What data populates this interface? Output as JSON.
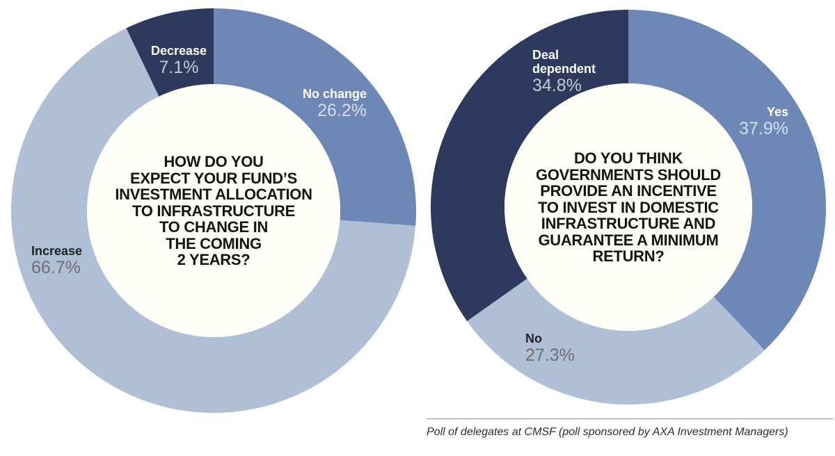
{
  "colors": {
    "dark_navy": "#2d3a5e",
    "medium_blue": "#6d88b7",
    "light_blue": "#aebfd6",
    "hole": "#fffef9",
    "background": "#ffffff"
  },
  "chart_data": [
    {
      "type": "pie",
      "subtype": "donut",
      "title": "HOW DO YOU\nEXPECT YOUR FUND’S\nINVESTMENT ALLOCATION\nTO INFRASTRUCTURE\nTO CHANGE IN\nTHE COMING\n2 YEARS?",
      "start_angle_deg": 0,
      "direction": "clockwise",
      "hole_color": "#fffef9",
      "segments": [
        {
          "label": "No change",
          "value": 26.2,
          "pct_text": "26.2%",
          "color": "#6d88b7",
          "text_theme": "light-on-dark"
        },
        {
          "label": "Increase",
          "value": 66.7,
          "pct_text": "66.7%",
          "color": "#aebfd6",
          "text_theme": "dark-on-light"
        },
        {
          "label": "Decrease",
          "value": 7.1,
          "pct_text": "7.1%",
          "color": "#2d3a5e",
          "text_theme": "light-on-dark"
        }
      ]
    },
    {
      "type": "pie",
      "subtype": "donut",
      "title": "DO YOU THINK\nGOVERNMENTS SHOULD\nPROVIDE AN INCENTIVE\nTO INVEST IN DOMESTIC\nINFRASTRUCTURE AND\nGUARANTEE A MINIMUM\nRETURN?",
      "start_angle_deg": 0,
      "direction": "clockwise",
      "hole_color": "#fffef9",
      "segments": [
        {
          "label": "Yes",
          "value": 37.9,
          "pct_text": "37.9%",
          "color": "#6d88b7",
          "text_theme": "light-on-dark"
        },
        {
          "label": "No",
          "value": 27.3,
          "pct_text": "27.3%",
          "color": "#aebfd6",
          "text_theme": "dark-on-light"
        },
        {
          "label": "Deal dependent",
          "value": 34.8,
          "pct_text": "34.8%",
          "color": "#2d3a5e",
          "text_theme": "light-on-dark"
        }
      ]
    }
  ],
  "caption": "Poll of delegates at CMSF (poll sponsored by AXA Investment Managers)"
}
